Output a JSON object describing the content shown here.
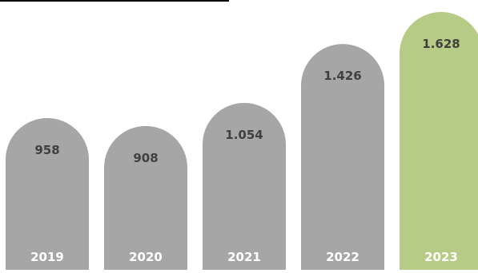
{
  "chart_data": {
    "type": "bar",
    "categories": [
      "2019",
      "2020",
      "2021",
      "2022",
      "2023"
    ],
    "values": [
      958,
      908,
      1054,
      1426,
      1628
    ],
    "value_labels": [
      "958",
      "908",
      "1.054",
      "1.426",
      "1.628"
    ],
    "title": "",
    "xlabel": "",
    "ylabel": "",
    "ylim": [
      0,
      1800
    ],
    "grid": false,
    "legend": "none",
    "highlight_index": 4
  },
  "colors": {
    "bar": "#a6a6a6",
    "highlight": "#b5cb86",
    "value_text": "#404040",
    "category_text": "#ffffff",
    "rule": "#000000"
  }
}
